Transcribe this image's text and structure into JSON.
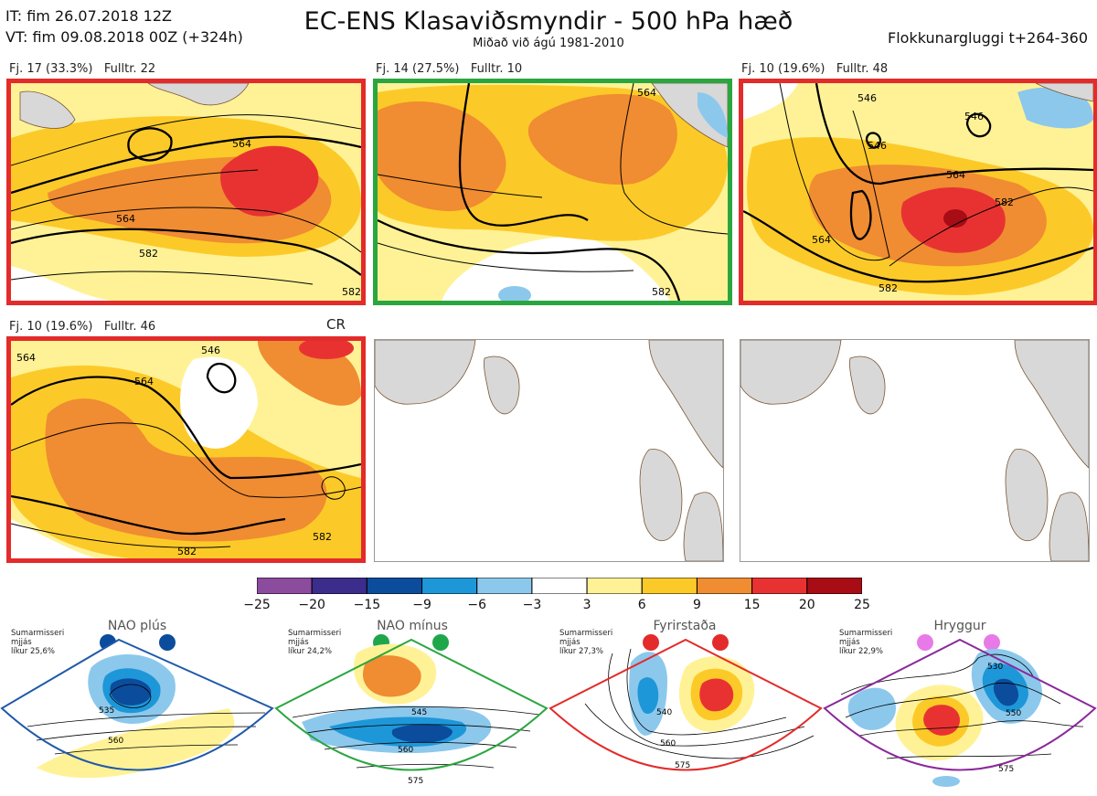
{
  "header": {
    "it": "IT: fim 26.07.2018 12Z",
    "vt": "VT: fim 09.08.2018 00Z  (+324h)",
    "title": "EC-ENS Klasaviðsmyndir - 500 hPa hæð",
    "subtitle": "Miðað við ágú 1981-2010",
    "window": "Flokkunargluggi t+264-360"
  },
  "colors": {
    "land": "#d8d8d8",
    "coast": "#7a5533",
    "frame_red": "#e32b2b",
    "frame_green": "#2aa640",
    "nao_plus": "#1f5aa8",
    "nao_minus": "#2aa640",
    "blocking": "#e32b2b",
    "ridge": "#8a2a9a"
  },
  "panels": [
    {
      "label": "Fj. 17 (33.3%)   Fulltr. 22",
      "frame": "red"
    },
    {
      "label": "Fj. 14 (27.5%)   Fulltr. 10",
      "frame": "green"
    },
    {
      "label": "Fj. 10 (19.6%)   Fulltr. 48",
      "frame": "red"
    },
    {
      "label": "Fj. 10 (19.6%)   Fulltr. 46",
      "frame": "red",
      "extra": "CR"
    },
    {
      "label": "",
      "frame": "none"
    },
    {
      "label": "",
      "frame": "none"
    }
  ],
  "contour_labels": {
    "p1": [
      "564",
      "564",
      "582",
      "582"
    ],
    "p2": [
      "564",
      "582"
    ],
    "p3": [
      "546",
      "546",
      "546",
      "564",
      "582",
      "582",
      "564"
    ],
    "p4": [
      "564",
      "564",
      "546",
      "582",
      "582"
    ]
  },
  "chart_data": {
    "type": "heatmap",
    "colorbar": {
      "ticks": [
        "−25",
        "−20",
        "−15",
        "−9",
        "−6",
        "−3",
        "3",
        "6",
        "9",
        "15",
        "20",
        "25"
      ],
      "colors": [
        "#8c4c9e",
        "#3c2c8c",
        "#0c4c9c",
        "#1e97d8",
        "#8cc8ec",
        "#ffffff",
        "#fff296",
        "#fcca28",
        "#f08c32",
        "#e83232",
        "#a80c14"
      ]
    }
  },
  "regimes": [
    {
      "name": "NAO plús",
      "season": "Sumarmisseri",
      "smooth": "mjjás",
      "prob": "líkur 25,6%",
      "dot_color": "#0c4c9c",
      "labels": [
        "535",
        "560"
      ]
    },
    {
      "name": "NAO mínus",
      "season": "Sumarmisseri",
      "smooth": "mjjás",
      "prob": "líkur 24,2%",
      "dot_color": "#1fa64b",
      "labels": [
        "545",
        "560",
        "575"
      ]
    },
    {
      "name": "Fyrirstaða",
      "season": "Sumarmisseri",
      "smooth": "mjjás",
      "prob": "líkur 27,3%",
      "dot_color": "#e32b2b",
      "labels": [
        "540",
        "560",
        "575"
      ]
    },
    {
      "name": "Hryggur",
      "season": "Sumarmisseri",
      "smooth": "mjjás",
      "prob": "líkur 22,9%",
      "dot_color": "#e87ae8",
      "labels": [
        "530",
        "550",
        "575"
      ]
    }
  ]
}
